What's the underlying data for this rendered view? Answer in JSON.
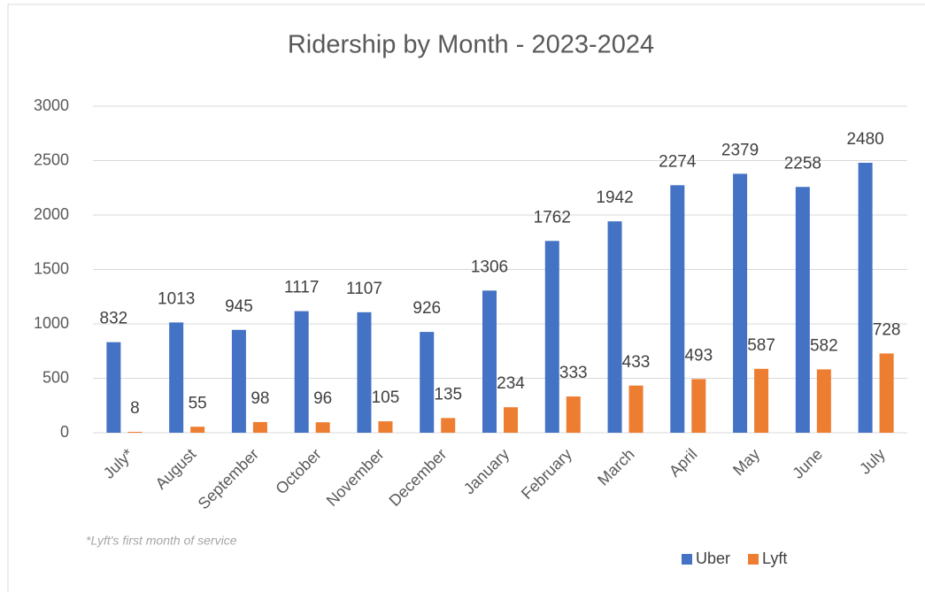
{
  "chart_data": {
    "type": "bar",
    "title": "Ridership by Month - 2023-2024",
    "annotation": "*Lyft's first month of service",
    "categories": [
      "July*",
      "August",
      "September",
      "October",
      "November",
      "December",
      "January",
      "February",
      "March",
      "April",
      "May",
      "June",
      "July"
    ],
    "series": [
      {
        "name": "Uber",
        "color": "#4472c4",
        "values": [
          832,
          1013,
          945,
          1117,
          1107,
          926,
          1306,
          1762,
          1942,
          2274,
          2379,
          2258,
          2480
        ]
      },
      {
        "name": "Lyft",
        "color": "#ed7d31",
        "values": [
          8,
          55,
          98,
          96,
          105,
          135,
          234,
          333,
          433,
          493,
          587,
          582,
          728
        ]
      }
    ],
    "ylim": [
      0,
      3000
    ],
    "yticks": [
      0,
      500,
      1000,
      1500,
      2000,
      2500,
      3000
    ],
    "grid": true,
    "legend": "bottom-right",
    "data_labels": true
  }
}
